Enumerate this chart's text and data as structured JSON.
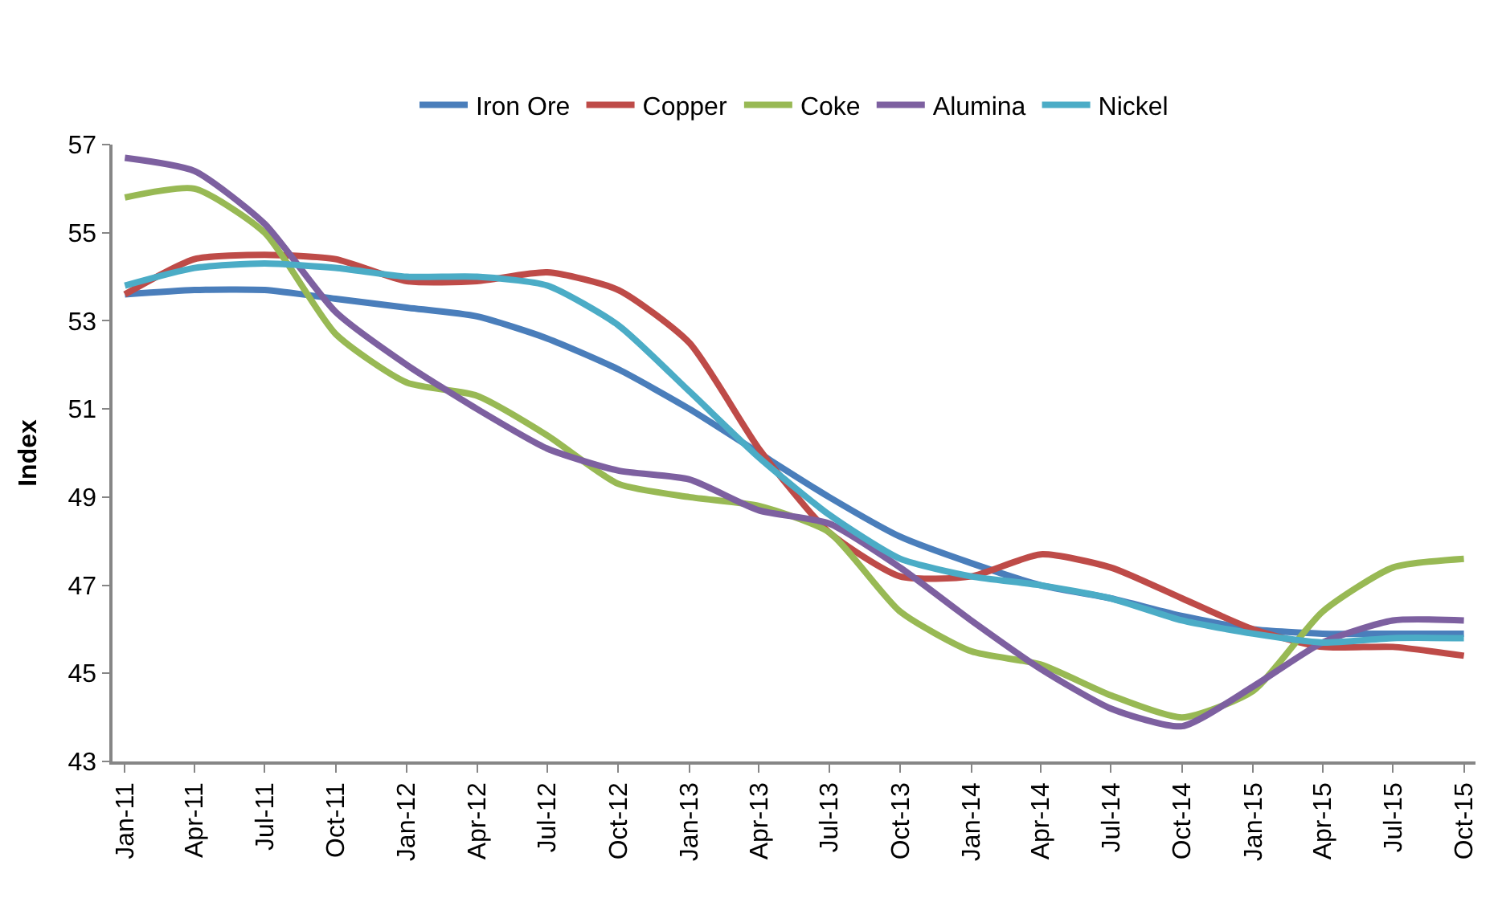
{
  "chart_data": {
    "type": "line",
    "ylabel": "Index",
    "x": [
      "2011-01",
      "2011-04",
      "2011-07",
      "2011-10",
      "2012-01",
      "2012-04",
      "2012-07",
      "2012-10",
      "2013-01",
      "2013-04",
      "2013-07",
      "2013-10",
      "2014-01",
      "2014-04",
      "2014-07",
      "2014-10",
      "2015-01",
      "2015-04",
      "2015-07",
      "2015-10"
    ],
    "series": [
      {
        "name": "Iron Ore",
        "color": "#4a7ebb",
        "values": [
          53.6,
          53.7,
          53.7,
          53.5,
          53.3,
          53.1,
          52.6,
          51.9,
          51.0,
          50.0,
          49.0,
          48.1,
          47.5,
          47.0,
          46.7,
          46.3,
          46.0,
          45.9,
          45.9,
          45.9
        ]
      },
      {
        "name": "Copper",
        "color": "#be4b48",
        "values": [
          53.6,
          54.4,
          54.5,
          54.4,
          53.9,
          53.9,
          54.1,
          53.7,
          52.5,
          50.1,
          48.2,
          47.2,
          47.2,
          47.7,
          47.4,
          46.7,
          46.0,
          45.6,
          45.6,
          45.4
        ]
      },
      {
        "name": "Coke",
        "color": "#98b954",
        "values": [
          55.8,
          56.0,
          55.0,
          52.7,
          51.6,
          51.3,
          50.4,
          49.3,
          49.0,
          48.8,
          48.2,
          46.4,
          45.5,
          45.2,
          44.5,
          44.0,
          44.6,
          46.4,
          47.4,
          47.6
        ]
      },
      {
        "name": "Alumina",
        "color": "#7d60a0",
        "values": [
          56.7,
          56.4,
          55.2,
          53.2,
          52.0,
          51.0,
          50.1,
          49.6,
          49.4,
          48.7,
          48.4,
          47.4,
          46.2,
          45.1,
          44.2,
          43.8,
          44.7,
          45.7,
          46.2,
          46.2
        ]
      },
      {
        "name": "Nickel",
        "color": "#4bacc6",
        "values": [
          53.8,
          54.2,
          54.3,
          54.2,
          54.0,
          54.0,
          53.8,
          52.9,
          51.4,
          49.9,
          48.6,
          47.6,
          47.2,
          47.0,
          46.7,
          46.2,
          45.9,
          45.7,
          45.8,
          45.8
        ]
      }
    ],
    "xlim": [
      "2010-12-16",
      "2015-10-16"
    ],
    "xticks": [
      {
        "value": "2011-01",
        "label": "Jan-11"
      },
      {
        "value": "2011-04",
        "label": "Apr-11"
      },
      {
        "value": "2011-07",
        "label": "Jul-11"
      },
      {
        "value": "2011-10",
        "label": "Oct-11"
      },
      {
        "value": "2012-01",
        "label": "Jan-12"
      },
      {
        "value": "2012-04",
        "label": "Apr-12"
      },
      {
        "value": "2012-07",
        "label": "Jul-12"
      },
      {
        "value": "2012-10",
        "label": "Oct-12"
      },
      {
        "value": "2013-01",
        "label": "Jan-13"
      },
      {
        "value": "2013-04",
        "label": "Apr-13"
      },
      {
        "value": "2013-07",
        "label": "Jul-13"
      },
      {
        "value": "2013-10",
        "label": "Oct-13"
      },
      {
        "value": "2014-01",
        "label": "Jan-14"
      },
      {
        "value": "2014-04",
        "label": "Apr-14"
      },
      {
        "value": "2014-07",
        "label": "Jul-14"
      },
      {
        "value": "2014-10",
        "label": "Oct-14"
      },
      {
        "value": "2015-01",
        "label": "Jan-15"
      },
      {
        "value": "2015-04",
        "label": "Apr-15"
      },
      {
        "value": "2015-07",
        "label": "Jul-15"
      },
      {
        "value": "2015-10",
        "label": "Oct-15"
      }
    ],
    "ylim": [
      43,
      57
    ],
    "yticks": [
      43,
      45,
      47,
      49,
      51,
      53,
      55,
      57
    ],
    "legend": "top",
    "marker": "none",
    "line_style": "solid"
  }
}
